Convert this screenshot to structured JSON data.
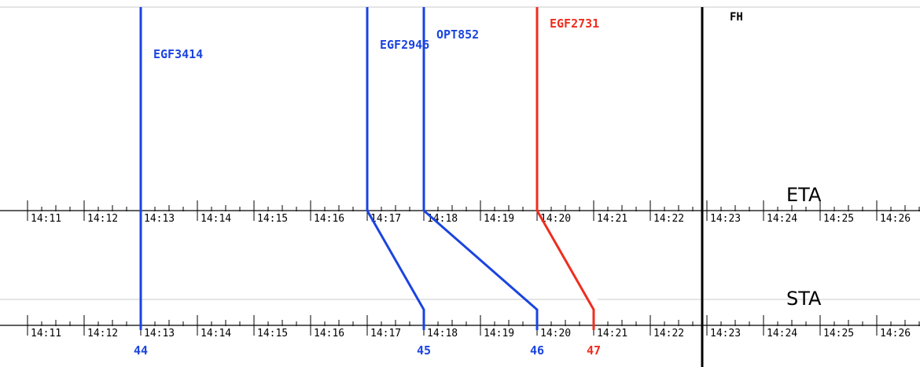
{
  "colors": {
    "unconfirmed": "#1a44e0",
    "alert": "#ef2d1e",
    "axis": "#000000",
    "frame": "#c8c8c8"
  },
  "axes": {
    "eta_label": "ETA",
    "sta_label": "STA",
    "fix_label": "FH",
    "fix_time": "14:23",
    "ticks": [
      "14:11",
      "14:12",
      "14:13",
      "14:14",
      "14:15",
      "14:16",
      "14:17",
      "14:18",
      "14:19",
      "14:20",
      "14:21",
      "14:22",
      "14:23",
      "14:24",
      "14:25",
      "14:26"
    ]
  },
  "flights": [
    {
      "callsign": "EGF3414",
      "eta": "14:13",
      "sta": "14:13",
      "seq": "44",
      "status": "unconfirmed"
    },
    {
      "callsign": "EGF2946",
      "eta": "14:17",
      "sta": "14:18",
      "seq": "45",
      "status": "unconfirmed"
    },
    {
      "callsign": "OPT852",
      "eta": "14:18",
      "sta": "14:20",
      "seq": "46",
      "status": "unconfirmed"
    },
    {
      "callsign": "EGF2731",
      "eta": "14:20",
      "sta": "14:21",
      "seq": "47",
      "status": "alert"
    }
  ]
}
